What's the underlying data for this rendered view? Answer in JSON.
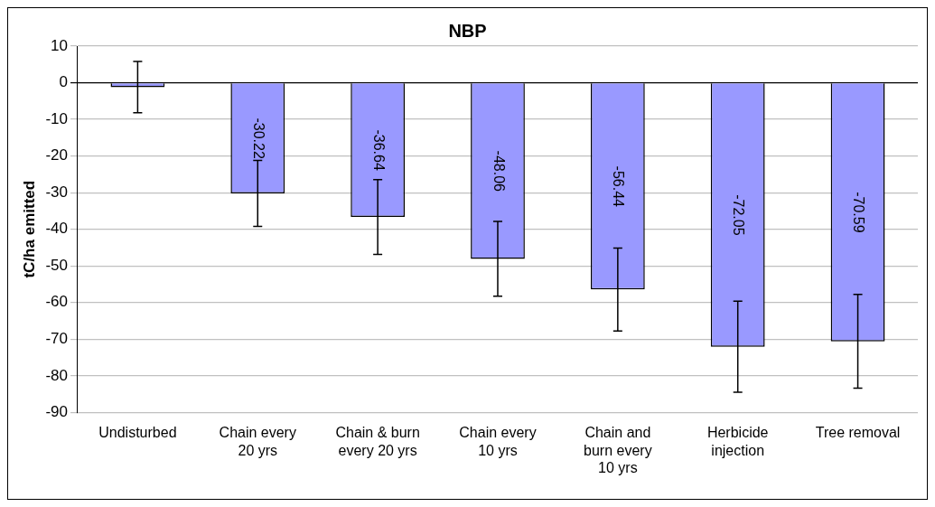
{
  "chart_data": {
    "type": "bar",
    "title": "NBP",
    "ylabel": "tC/ha emitted",
    "categories": [
      "Undisturbed",
      "Chain every 20 yrs",
      "Chain & burn every 20 yrs",
      "Chain every 10 yrs",
      "Chain and burn every 10 yrs",
      "Herbicide injection",
      "Tree removal"
    ],
    "values": [
      -1.2,
      -30.22,
      -36.64,
      -48.06,
      -56.44,
      -72.05,
      -70.59
    ],
    "value_labels": [
      null,
      "-30.22",
      "-36.64",
      "-48.06",
      "-56.44",
      "-72.05",
      "-70.59"
    ],
    "errors": [
      7,
      9,
      10.2,
      10.2,
      11.3,
      12.4,
      12.8
    ],
    "color": "#9999ff",
    "ylim": [
      -90,
      10
    ],
    "yticks": [
      -90,
      -80,
      -70,
      -60,
      -50,
      -40,
      -30,
      -20,
      -10,
      0,
      10
    ],
    "grid": "y",
    "legend": false
  }
}
